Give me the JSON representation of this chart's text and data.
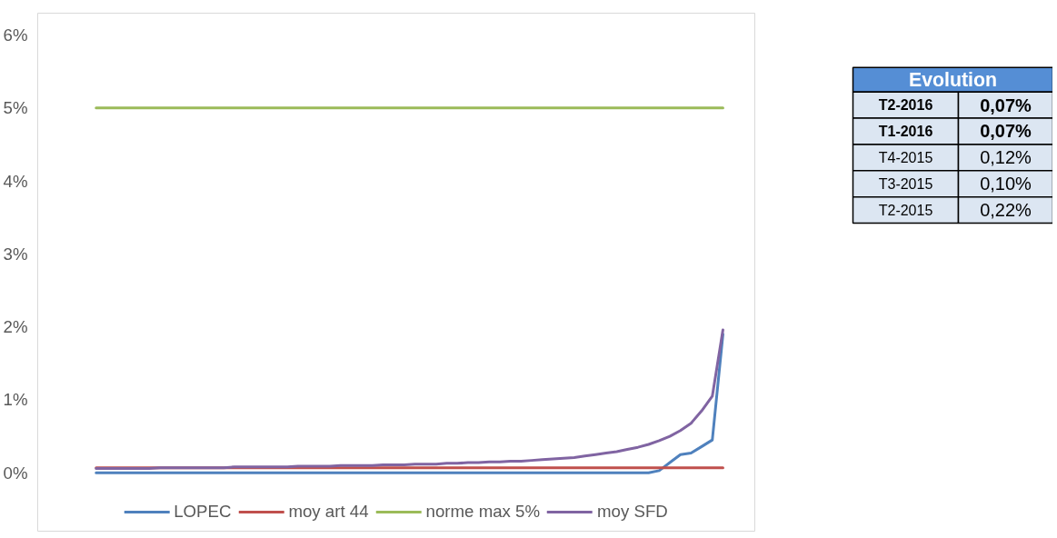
{
  "chart_data": [
    {
      "type": "line",
      "categories": [
        null,
        null,
        null,
        null,
        null,
        null,
        null,
        null,
        null,
        null,
        null,
        null,
        null,
        null,
        null,
        null,
        null,
        null,
        null,
        null,
        null,
        null,
        null,
        null,
        null,
        null,
        null,
        null,
        null,
        null,
        null,
        null,
        null,
        null,
        null,
        null,
        null,
        null,
        null,
        null,
        null,
        null,
        null,
        null,
        null,
        null,
        null,
        null,
        null,
        null,
        null,
        null,
        null,
        null,
        null,
        null,
        null,
        null,
        null,
        null
      ],
      "ylim": [
        -0.8,
        6.3
      ],
      "yticks": [
        {
          "value": 0,
          "label": "0%"
        },
        {
          "value": 1,
          "label": "1%"
        },
        {
          "value": 2,
          "label": "2%"
        },
        {
          "value": 3,
          "label": "3%"
        },
        {
          "value": 4,
          "label": "4%"
        },
        {
          "value": 5,
          "label": "5%"
        },
        {
          "value": 6,
          "label": "6%"
        }
      ],
      "grid": false,
      "legend": "bottom",
      "marker": "none",
      "line_style": "solid",
      "series": [
        {
          "name": "LOPEC",
          "color": "#4f81bd",
          "values": [
            0,
            0,
            0,
            0,
            0,
            0,
            0,
            0,
            0,
            0,
            0,
            0,
            0,
            0,
            0,
            0,
            0,
            0,
            0,
            0,
            0,
            0,
            0,
            0,
            0,
            0,
            0,
            0,
            0,
            0,
            0,
            0,
            0,
            0,
            0,
            0,
            0,
            0,
            0,
            0,
            0,
            0,
            0,
            0,
            0,
            0,
            0,
            0,
            0,
            0,
            0,
            0,
            0,
            0.03,
            0.14,
            0.25,
            0.27,
            0.36,
            0.45,
            1.9
          ]
        },
        {
          "name": "moy art 44",
          "color": "#c0504d",
          "values": [
            0.07,
            0.07,
            0.07,
            0.07,
            0.07,
            0.07,
            0.07,
            0.07,
            0.07,
            0.07,
            0.07,
            0.07,
            0.07,
            0.07,
            0.07,
            0.07,
            0.07,
            0.07,
            0.07,
            0.07,
            0.07,
            0.07,
            0.07,
            0.07,
            0.07,
            0.07,
            0.07,
            0.07,
            0.07,
            0.07,
            0.07,
            0.07,
            0.07,
            0.07,
            0.07,
            0.07,
            0.07,
            0.07,
            0.07,
            0.07,
            0.07,
            0.07,
            0.07,
            0.07,
            0.07,
            0.07,
            0.07,
            0.07,
            0.07,
            0.07,
            0.07,
            0.07,
            0.07,
            0.07,
            0.07,
            0.07,
            0.07,
            0.07,
            0.07,
            0.07
          ]
        },
        {
          "name": "norme max 5%",
          "color": "#9bbb59",
          "values": [
            5,
            5,
            5,
            5,
            5,
            5,
            5,
            5,
            5,
            5,
            5,
            5,
            5,
            5,
            5,
            5,
            5,
            5,
            5,
            5,
            5,
            5,
            5,
            5,
            5,
            5,
            5,
            5,
            5,
            5,
            5,
            5,
            5,
            5,
            5,
            5,
            5,
            5,
            5,
            5,
            5,
            5,
            5,
            5,
            5,
            5,
            5,
            5,
            5,
            5,
            5,
            5,
            5,
            5,
            5,
            5,
            5,
            5,
            5,
            5
          ]
        },
        {
          "name": "moy SFD",
          "color": "#8064a2",
          "values": [
            0.06,
            0.06,
            0.06,
            0.06,
            0.06,
            0.06,
            0.07,
            0.07,
            0.07,
            0.07,
            0.07,
            0.07,
            0.07,
            0.08,
            0.08,
            0.08,
            0.08,
            0.08,
            0.08,
            0.09,
            0.09,
            0.09,
            0.09,
            0.1,
            0.1,
            0.1,
            0.1,
            0.11,
            0.11,
            0.11,
            0.12,
            0.12,
            0.12,
            0.13,
            0.13,
            0.14,
            0.14,
            0.15,
            0.15,
            0.16,
            0.16,
            0.17,
            0.18,
            0.19,
            0.2,
            0.21,
            0.23,
            0.25,
            0.27,
            0.29,
            0.32,
            0.35,
            0.39,
            0.44,
            0.5,
            0.58,
            0.68,
            0.85,
            1.05,
            1.96
          ]
        }
      ]
    },
    {
      "type": "other",
      "title": "Evolution",
      "annotations": [
        "T2-2016",
        "0,07%",
        "T1-2016",
        "0,07%",
        "T4-2015",
        "0,12%",
        "T3-2015",
        "0,10%",
        "T2-2015",
        "0,22%"
      ]
    }
  ]
}
